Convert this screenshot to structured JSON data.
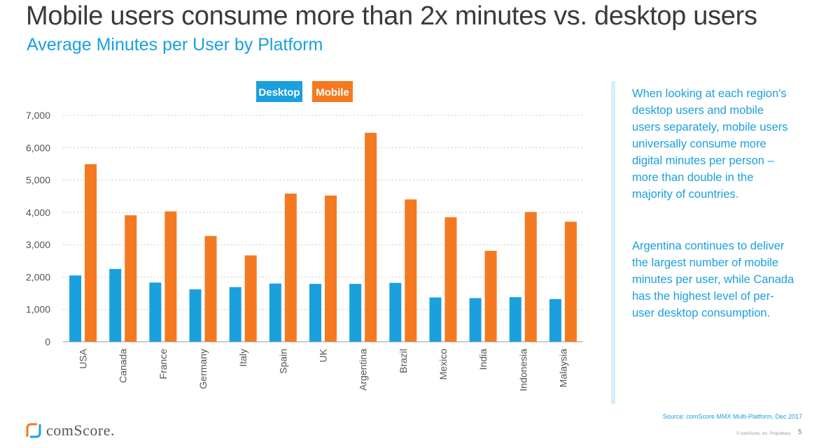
{
  "slide": {
    "title": "Mobile users consume more than 2x minutes vs. desktop users",
    "subtitle": "Average Minutes per User by Platform",
    "commentary": [
      "When looking at each region's desktop users and mobile users separately, mobile users universally consume more digital minutes per person – more than double in the majority of countries.",
      "Argentina continues to deliver the largest number of mobile minutes per user, while Canada has the highest level of per-user desktop consumption."
    ],
    "source": "Source: comScore MMX Multi-Platform, Dec 2017",
    "logo_text": "comScore.",
    "copyright": "© comScore, Inc. Proprietary.",
    "page_number": "5"
  },
  "colors": {
    "desktop": "#1aa0dd",
    "mobile": "#f47920",
    "title": "#3a3a3a",
    "accent": "#1aa0dd"
  },
  "chart_data": {
    "type": "bar",
    "categories": [
      "USA",
      "Canada",
      "France",
      "Germany",
      "Italy",
      "Spain",
      "UK",
      "Argentina",
      "Brazil",
      "Mexico",
      "India",
      "Indonesia",
      "Malaysia"
    ],
    "series": [
      {
        "name": "Desktop",
        "values": [
          2050,
          2250,
          1830,
          1620,
          1690,
          1800,
          1790,
          1790,
          1820,
          1370,
          1350,
          1380,
          1320
        ]
      },
      {
        "name": "Mobile",
        "values": [
          5490,
          3910,
          4030,
          3270,
          2670,
          4580,
          4520,
          6460,
          4400,
          3850,
          2810,
          4010,
          3710
        ]
      }
    ],
    "yticks": [
      "0",
      "1,000",
      "2,000",
      "3,000",
      "4,000",
      "5,000",
      "6,000",
      "7,000"
    ],
    "ylim": [
      0,
      7000
    ],
    "legend": "top",
    "grid": true
  }
}
